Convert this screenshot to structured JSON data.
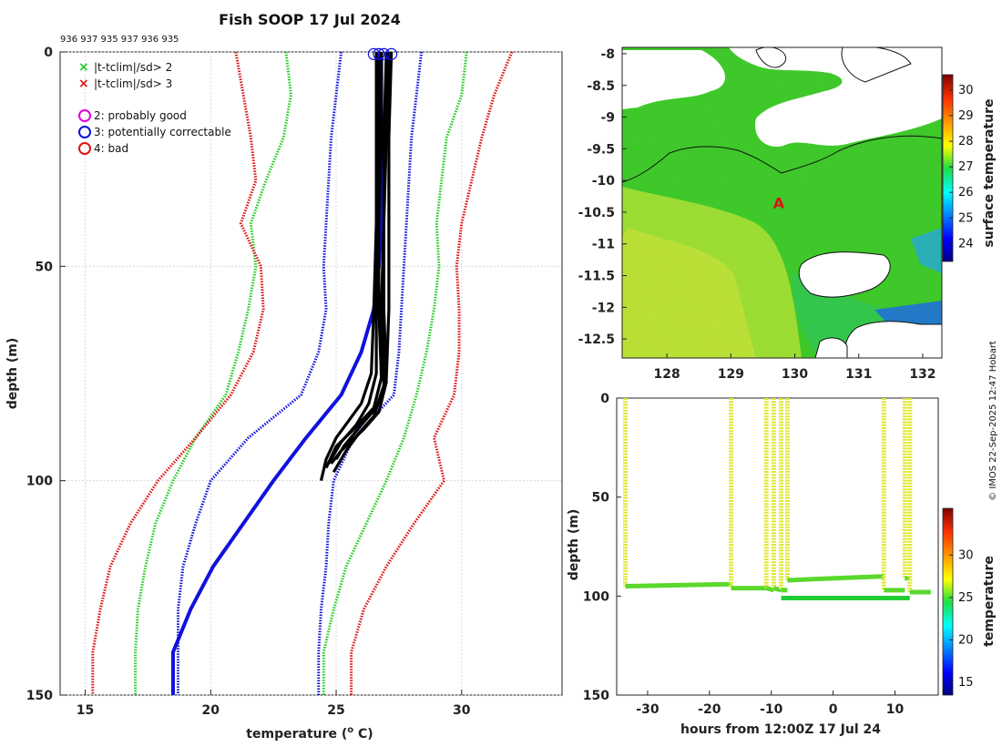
{
  "chart_data": [
    {
      "type": "line",
      "title": "Fish SOOP 17 Jul 2024",
      "id_labels": "936 937 935 937 936 935",
      "xlabel": "temperature (° C)",
      "xlabel_main": "temperature (",
      "xlabel_sup": "o",
      "xlabel_end": " C)",
      "ylabel": "depth (m)",
      "xlim": [
        14,
        34
      ],
      "ylim": [
        0,
        150
      ],
      "xticks": [
        15,
        20,
        25,
        30
      ],
      "yticks": [
        0,
        50,
        100,
        150
      ],
      "legend": [
        {
          "symbol": "×",
          "color": "#22cc22",
          "label": "|t-tclim|/sd> 2"
        },
        {
          "symbol": "×",
          "color": "#dd1111",
          "label": "|t-tclim|/sd> 3"
        },
        {
          "symbol": "○",
          "color": "#dd00dd",
          "label": "2: probably good"
        },
        {
          "symbol": "○",
          "color": "#1111dd",
          "label": "3: potentially correctable"
        },
        {
          "symbol": "○",
          "color": "#dd1111",
          "label": "4: bad"
        }
      ],
      "depth": [
        0,
        10,
        20,
        30,
        40,
        50,
        60,
        70,
        80,
        90,
        100,
        110,
        120,
        130,
        140,
        150
      ],
      "climatology_mean": [
        26.8,
        26.8,
        26.8,
        26.8,
        26.8,
        26.7,
        26.5,
        26.0,
        25.2,
        23.8,
        22.5,
        21.3,
        20.1,
        19.2,
        18.5,
        18.5
      ],
      "climatology_lines": [
        {
          "name": "mean",
          "color": "#1111dd",
          "style": "solid",
          "values": [
            26.8,
            26.8,
            26.8,
            26.8,
            26.8,
            26.7,
            26.5,
            26.0,
            25.2,
            23.8,
            22.5,
            21.3,
            20.1,
            19.2,
            18.5,
            18.5
          ]
        },
        {
          "name": "-1sd",
          "color": "#1111dd",
          "style": "dotted",
          "values": [
            25.2,
            25.0,
            24.8,
            24.7,
            24.6,
            24.5,
            24.6,
            24.3,
            23.6,
            21.5,
            20.0,
            19.4,
            18.9,
            18.7,
            18.7,
            18.7
          ]
        },
        {
          "name": "+1sd",
          "color": "#1111dd",
          "style": "dotted",
          "values": [
            28.4,
            28.2,
            28.0,
            27.9,
            27.8,
            27.7,
            27.6,
            27.5,
            27.3,
            25.7,
            24.9,
            24.7,
            24.6,
            24.4,
            24.3,
            24.3
          ]
        },
        {
          "name": "-2sd",
          "color": "#22cc22",
          "style": "dotted",
          "values": [
            23.0,
            23.2,
            22.9,
            22.2,
            21.6,
            21.8,
            21.5,
            21.1,
            20.6,
            19.4,
            18.5,
            17.8,
            17.4,
            17.1,
            17.0,
            17.0
          ]
        },
        {
          "name": "+2sd",
          "color": "#22cc22",
          "style": "dotted",
          "values": [
            30.2,
            30.0,
            29.4,
            29.2,
            29.0,
            29.1,
            28.9,
            28.6,
            28.2,
            27.7,
            27.0,
            26.2,
            25.4,
            24.9,
            24.5,
            24.5
          ]
        },
        {
          "name": "-3sd",
          "color": "#dd1111",
          "style": "dotted",
          "values": [
            21.0,
            21.3,
            21.6,
            21.8,
            21.2,
            22.0,
            22.1,
            21.7,
            20.8,
            19.4,
            17.9,
            16.8,
            16.0,
            15.6,
            15.3,
            15.3
          ]
        },
        {
          "name": "+3sd",
          "color": "#dd1111",
          "style": "dotted",
          "values": [
            32.0,
            31.3,
            30.8,
            30.4,
            30.0,
            29.8,
            29.9,
            29.9,
            29.7,
            28.9,
            29.3,
            28.1,
            27.0,
            26.1,
            25.6,
            25.6
          ]
        }
      ],
      "profiles": [
        {
          "depth": [
            0,
            20,
            40,
            60,
            75,
            82,
            86,
            90,
            95,
            100
          ],
          "temp": [
            26.6,
            26.6,
            26.6,
            26.5,
            26.4,
            26.0,
            25.5,
            25.0,
            24.6,
            24.4
          ]
        },
        {
          "depth": [
            0,
            20,
            40,
            60,
            75,
            82,
            87,
            91,
            96
          ],
          "temp": [
            26.7,
            26.7,
            26.6,
            26.6,
            26.6,
            26.3,
            25.8,
            25.2,
            24.7
          ]
        },
        {
          "depth": [
            0,
            20,
            40,
            60,
            76,
            83,
            88,
            92,
            97
          ],
          "temp": [
            26.8,
            26.8,
            26.7,
            26.7,
            26.8,
            26.5,
            25.7,
            25.0,
            24.6
          ]
        },
        {
          "depth": [
            0,
            20,
            40,
            60,
            77,
            84,
            88,
            93,
            96
          ],
          "temp": [
            27.0,
            26.9,
            26.9,
            26.9,
            27.0,
            26.7,
            26.1,
            25.2,
            24.8
          ]
        },
        {
          "depth": [
            0,
            20,
            40,
            60,
            78,
            85,
            89,
            93,
            98
          ],
          "temp": [
            27.1,
            27.0,
            26.9,
            26.8,
            26.9,
            26.5,
            25.9,
            25.4,
            24.9
          ]
        },
        {
          "depth": [
            0,
            20,
            40,
            60,
            76,
            83,
            87,
            92,
            95
          ],
          "temp": [
            27.2,
            27.1,
            27.1,
            27.1,
            27.0,
            26.6,
            26.0,
            25.3,
            25.0
          ]
        }
      ],
      "flag_markers": [
        {
          "depth": 0.5,
          "temp": 26.5
        },
        {
          "depth": 0.5,
          "temp": 26.7
        },
        {
          "depth": 0.5,
          "temp": 26.9
        },
        {
          "depth": 0.5,
          "temp": 27.2
        }
      ]
    },
    {
      "type": "heatmap",
      "ylim": [
        -12.8,
        -7.9
      ],
      "xlim": [
        127.3,
        132.3
      ],
      "xticks": [
        128,
        129,
        130,
        131,
        132
      ],
      "xtick_labels": [
        "128",
        "129",
        "130",
        "131",
        "132"
      ],
      "yticks": [
        -8,
        -8.5,
        -9,
        -9.5,
        -10,
        -10.5,
        -11,
        -11.5,
        -12,
        -12.5
      ],
      "ytick_labels": [
        "-8",
        "-8.5",
        "-9",
        "-9.5",
        "-10",
        "-10.5",
        "-11",
        "-11.5",
        "-12",
        "-12.5"
      ],
      "colorbar_label": "surface temperature",
      "colorbar_range": [
        23.3,
        30.6
      ],
      "colorbar_ticks": [
        "24",
        "25",
        "26",
        "27",
        "28",
        "29",
        "30"
      ],
      "colorbar_tick_values": [
        24,
        25,
        26,
        27,
        28,
        29,
        30
      ],
      "marker_label": "A",
      "marker_lon": 129.75,
      "marker_lat": -10.35
    },
    {
      "type": "scatter",
      "xlabel": "hours from 12:00Z 17 Jul 24",
      "ylabel": "depth (m)",
      "xlim": [
        -35,
        17
      ],
      "ylim": [
        0,
        150
      ],
      "xticks": [
        -30,
        -20,
        -10,
        0,
        10
      ],
      "yticks": [
        0,
        50,
        100,
        150
      ],
      "colorbar_label": "temperature",
      "colorbar_range": [
        13.5,
        35.5
      ],
      "colorbar_ticks": [
        "15",
        "20",
        "25",
        "30"
      ],
      "colorbar_tick_values": [
        15,
        20,
        25,
        30
      ],
      "casts": [
        {
          "t": -33.6,
          "tb": -16.5,
          "bottom": 95,
          "bottom_end": 94
        },
        {
          "t": -16.5,
          "tb": -10.8,
          "bottom": 96,
          "bottom_end": 96
        },
        {
          "t": -10.8,
          "tb": -9.6,
          "bottom": 96,
          "bottom_end": 97
        },
        {
          "t": -9.6,
          "tb": -8.4,
          "bottom": 96,
          "bottom_end": 97
        },
        {
          "t": -8.4,
          "tb": -7.4,
          "bottom": 97,
          "bottom_end": 97
        },
        {
          "t": -7.4,
          "tb": 8.2,
          "bottom": 92,
          "bottom_end": 90
        },
        {
          "t": 8.2,
          "tb": 11.6,
          "bottom": 97,
          "bottom_end": 97
        },
        {
          "t": 11.6,
          "tb": 12.4,
          "bottom": 91,
          "bottom_end": 91
        },
        {
          "t": 12.4,
          "tb": 15.8,
          "bottom": 98,
          "bottom_end": 98
        }
      ],
      "deep_track": {
        "t": [
          -8.4,
          12.4
        ],
        "depth": [
          101,
          101
        ]
      }
    }
  ],
  "copyright": "© IMOS 22-Sep-2025 12:47 Hobart"
}
